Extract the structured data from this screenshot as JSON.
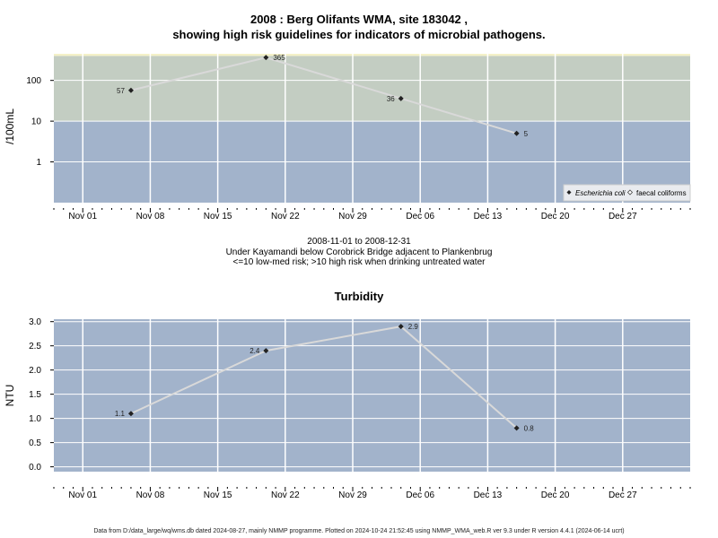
{
  "page": {
    "title_line1": "2008 : Berg Olifants WMA, site 183042 ,",
    "title_line2": "showing high risk guidelines for indicators of microbial pathogens.",
    "period": "2008-11-01 to 2008-12-31",
    "location": "Under Kayamandi below Corobrick Bridge adjacent to Plankenbrug",
    "guideline_note": "<=10 low-med risk; >10 high risk when drinking untreated water",
    "footer": "Data from D:/data_large/wq/wms.db dated 2024-08-27, mainly NMMP programme. Plotted on 2024-10-24 21:52:45 using NMMP_WMA_web.R ver 9.3 under R version 4.4.1 (2024-06-14 ucrt)"
  },
  "colors": {
    "panel_blue": "#a2b3cb",
    "panel_green": "#c3cdc2",
    "panel_cream": "#f4f1c8",
    "line": "#d9d9d9",
    "grid": "#ffffff",
    "point": "#222222"
  },
  "chart_data": [
    {
      "type": "line",
      "title": "",
      "ylabel": "/100mL",
      "yscale": "log",
      "yticks": [
        1,
        10,
        100
      ],
      "ytick_labels": [
        "1",
        "10",
        "100"
      ],
      "ylim": [
        0.1,
        450
      ],
      "x_tick_labels": [
        "Nov 01",
        "Nov 08",
        "Nov 15",
        "Nov 22",
        "Nov 29",
        "Dec 06",
        "Dec 13",
        "Dec 20",
        "Dec 27"
      ],
      "x_tick_dates": [
        "2008-11-01",
        "2008-11-08",
        "2008-11-15",
        "2008-11-22",
        "2008-11-29",
        "2008-12-06",
        "2008-12-13",
        "2008-12-20",
        "2008-12-27"
      ],
      "xlim": [
        "2008-10-29",
        "2009-01-03"
      ],
      "bands": [
        {
          "from": 0.1,
          "to": 10,
          "color": "#a2b3cb"
        },
        {
          "from": 10,
          "to": 400,
          "color": "#c3cdc2"
        },
        {
          "from": 400,
          "to": 450,
          "color": "#f4f1c8"
        }
      ],
      "legend": [
        "Escherichia coli",
        "faecal coliforms"
      ],
      "legend_position": "bottom-right",
      "series": [
        {
          "name": "Escherichia coli",
          "x": [
            "2008-11-06",
            "2008-11-20",
            "2008-12-04",
            "2008-12-16"
          ],
          "y": [
            57,
            365,
            36,
            5
          ],
          "labels": [
            "57",
            "365",
            "36",
            "5"
          ]
        }
      ]
    },
    {
      "type": "line",
      "title": "Turbidity",
      "ylabel": "NTU",
      "yscale": "linear",
      "yticks": [
        0,
        0.5,
        1,
        1.5,
        2,
        2.5,
        3
      ],
      "ytick_labels": [
        "0.0",
        "0.5",
        "1.0",
        "1.5",
        "2.0",
        "2.5",
        "3.0"
      ],
      "ylim": [
        -0.1,
        3.05
      ],
      "x_tick_labels": [
        "Nov 01",
        "Nov 08",
        "Nov 15",
        "Nov 22",
        "Nov 29",
        "Dec 06",
        "Dec 13",
        "Dec 20",
        "Dec 27"
      ],
      "x_tick_dates": [
        "2008-11-01",
        "2008-11-08",
        "2008-11-15",
        "2008-11-22",
        "2008-11-29",
        "2008-12-06",
        "2008-12-13",
        "2008-12-20",
        "2008-12-27"
      ],
      "xlim": [
        "2008-10-29",
        "2009-01-03"
      ],
      "series": [
        {
          "x": [
            "2008-11-06",
            "2008-11-20",
            "2008-12-04",
            "2008-12-16"
          ],
          "y": [
            1.1,
            2.4,
            2.9,
            0.8
          ],
          "labels": [
            "1.1",
            "2.4",
            "2.9",
            "0.8"
          ]
        }
      ]
    }
  ]
}
